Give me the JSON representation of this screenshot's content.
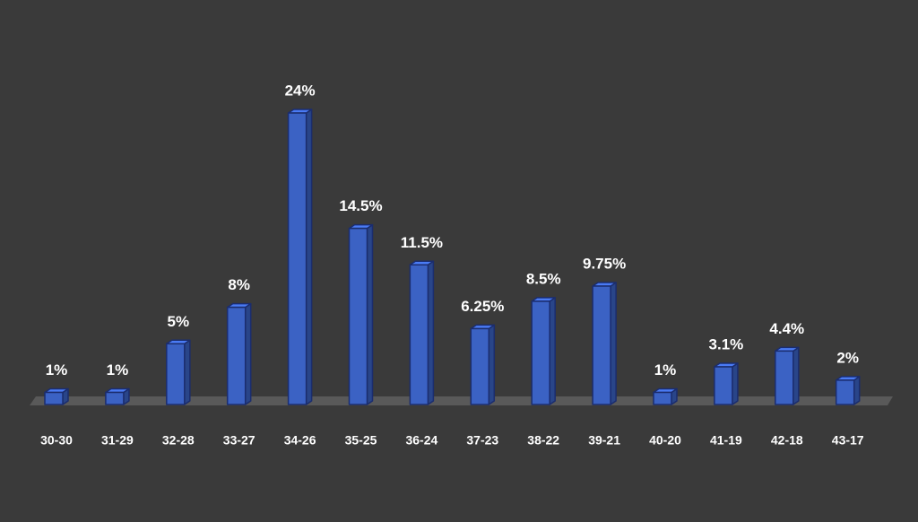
{
  "chart_data": {
    "type": "bar3d",
    "categories": [
      "30-30",
      "31-29",
      "32-28",
      "33-27",
      "34-26",
      "35-25",
      "36-24",
      "37-23",
      "38-22",
      "39-21",
      "40-20",
      "41-19",
      "42-18",
      "43-17"
    ],
    "values": [
      1,
      1,
      5,
      8,
      24,
      14.5,
      11.5,
      6.25,
      8.5,
      9.75,
      1,
      3.1,
      4.4,
      2
    ],
    "value_labels": [
      "1%",
      "1%",
      "5%",
      "8%",
      "24%",
      "14.5%",
      "11.5%",
      "6.25%",
      "8.5%",
      "9.75%",
      "1%",
      "3.1%",
      "4.4%",
      "2%"
    ],
    "color": "#3b62c4"
  }
}
